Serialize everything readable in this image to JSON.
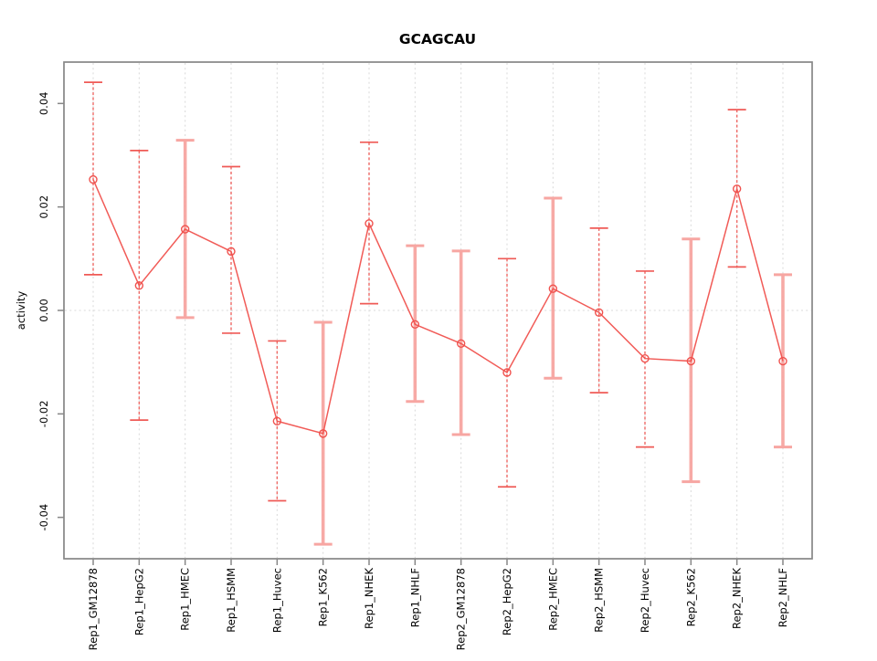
{
  "chart_data": {
    "type": "line",
    "title": "GCAGCAU",
    "xlabel": "",
    "ylabel": "activity",
    "categories": [
      "Rep1_GM12878",
      "Rep1_HepG2",
      "Rep1_HMEC",
      "Rep1_HSMM",
      "Rep1_Huvec",
      "Rep1_K562",
      "Rep1_NHEK",
      "Rep1_NHLF",
      "Rep2_GM12878",
      "Rep2_HepG2",
      "Rep2_HMEC",
      "Rep2_HSMM",
      "Rep2_Huvec",
      "Rep2_K562",
      "Rep2_NHEK",
      "Rep2_NHLF"
    ],
    "series": [
      {
        "name": "activity",
        "values": [
          0.0253,
          0.0048,
          0.0157,
          0.0114,
          -0.0214,
          -0.0238,
          0.0168,
          -0.0027,
          -0.0064,
          -0.012,
          0.0042,
          -0.0004,
          -0.0093,
          -0.0098,
          0.0235,
          -0.0098
        ],
        "error_upper": [
          0.0441,
          0.0309,
          0.0329,
          0.0278,
          -0.0059,
          -0.0023,
          0.0325,
          0.0125,
          0.0115,
          0.01,
          0.0217,
          0.0159,
          0.0076,
          0.0138,
          0.0388,
          0.0069
        ],
        "error_lower": [
          0.0069,
          -0.0212,
          -0.0014,
          -0.0044,
          -0.0368,
          -0.0452,
          0.0013,
          -0.0176,
          -0.024,
          -0.0341,
          -0.0131,
          -0.0159,
          -0.0264,
          -0.0331,
          0.0084,
          -0.0264
        ],
        "bar_style": [
          "thin",
          "thin",
          "thick",
          "thin",
          "thin",
          "thick",
          "thin",
          "thick",
          "thick",
          "thin",
          "thick",
          "thin",
          "thin",
          "thick",
          "thin",
          "thick"
        ]
      }
    ],
    "ylim": [
      -0.048,
      0.048
    ],
    "ytick_values": [
      -0.04,
      -0.02,
      0,
      0.02,
      0.04
    ],
    "ytick_labels": [
      "-0.04",
      "-0.02",
      "0.00",
      "0.02",
      "0.04"
    ],
    "grid": "vertical dotted gridline at each category; dotted horizontal line at y=0",
    "legend": "none",
    "marker": "open-circle",
    "colors": {
      "series": "#f0524e",
      "error_bar_thin": "#ef5a56",
      "error_bar_thick": "#f7a6a2",
      "gridline": "#d9d9d9",
      "axis": "#878787",
      "text": "#000000",
      "background": "#ffffff"
    }
  }
}
